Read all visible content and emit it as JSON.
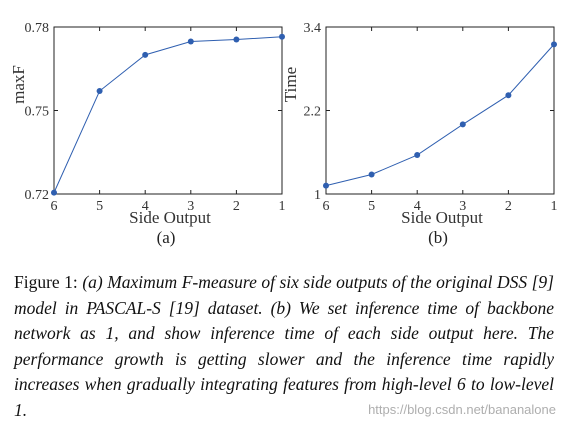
{
  "chart_data": [
    {
      "type": "line",
      "panel_label": "(a)",
      "xlabel": "Side Output",
      "ylabel": "maxF",
      "categories": [
        "6",
        "5",
        "4",
        "3",
        "2",
        "1"
      ],
      "yticks": [
        "0.72",
        "0.75",
        "0.78"
      ],
      "ylim": [
        0.72,
        0.78
      ],
      "series": [
        {
          "values": [
            0.7205,
            0.757,
            0.77,
            0.7748,
            0.7755,
            0.7765
          ]
        }
      ],
      "grid": false
    },
    {
      "type": "line",
      "panel_label": "(b)",
      "xlabel": "Side Output",
      "ylabel": "Time",
      "categories": [
        "6",
        "5",
        "4",
        "3",
        "2",
        "1"
      ],
      "yticks": [
        "1",
        "2.2",
        "3.4"
      ],
      "ylim": [
        1,
        3.4
      ],
      "series": [
        {
          "values": [
            1.12,
            1.28,
            1.56,
            2.0,
            2.42,
            3.15
          ]
        }
      ],
      "grid": false
    }
  ],
  "caption": {
    "head": "Figure 1:",
    "body": "(a) Maximum F-measure of six side outputs of the original DSS [9] model in PASCAL-S [19] dataset. (b) We set inference time of backbone network as 1, and show inference time of each side output here. The performance growth is getting slower and the inference time rapidly increases when gradually integrating features from high-level 6 to low-level 1."
  },
  "watermark": "https://blog.csdn.net/bananalone"
}
